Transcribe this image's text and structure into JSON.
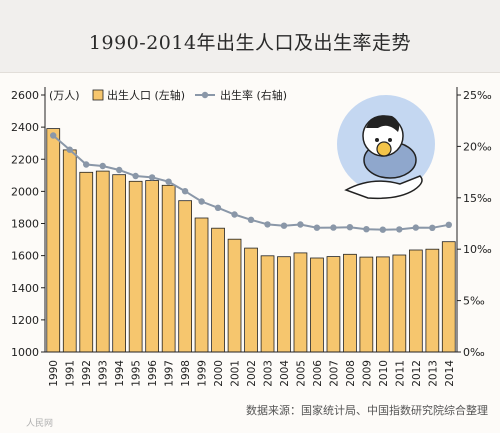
{
  "chart_data": {
    "type": "bar",
    "title": "1990-2014年出生人口及出生率走势",
    "categories": [
      "1990",
      "1991",
      "1992",
      "1993",
      "1994",
      "1995",
      "1996",
      "1997",
      "1998",
      "1999",
      "2000",
      "2001",
      "2002",
      "2003",
      "2004",
      "2005",
      "2006",
      "2007",
      "2008",
      "2009",
      "2010",
      "2011",
      "2012",
      "2013",
      "2014"
    ],
    "series": [
      {
        "name": "出生人口 (左轴)",
        "type": "bar",
        "axis": "left",
        "color": "#f6c66e",
        "values": [
          2391,
          2258,
          2119,
          2126,
          2104,
          2063,
          2067,
          2038,
          1942,
          1834,
          1771,
          1702,
          1647,
          1599,
          1593,
          1617,
          1585,
          1594,
          1608,
          1591,
          1592,
          1604,
          1635,
          1640,
          1687
        ]
      },
      {
        "name": "出生率 (右轴)",
        "type": "line",
        "axis": "right",
        "color": "#8a97a8",
        "values": [
          21.06,
          19.68,
          18.24,
          18.09,
          17.7,
          17.12,
          16.98,
          16.57,
          15.64,
          14.64,
          14.03,
          13.38,
          12.86,
          12.41,
          12.29,
          12.4,
          12.09,
          12.1,
          12.14,
          11.95,
          11.9,
          11.93,
          12.1,
          12.08,
          12.37
        ]
      }
    ],
    "y_left": {
      "unit_label": "(万人)",
      "min": 1000,
      "max": 2600,
      "ticks": [
        "2600",
        "2400",
        "2200",
        "2000",
        "1800",
        "1600",
        "1400",
        "1200",
        "1000"
      ]
    },
    "y_right": {
      "min": 0,
      "max": 25,
      "ticks": [
        "25‰",
        "20‰",
        "15‰",
        "10‰",
        "5‰",
        "0‰"
      ]
    },
    "legend_position": "top-left",
    "grid": false,
    "source": "数据来源：国家统计局、中国指数研究院综合整理"
  },
  "watermark": "人民网"
}
